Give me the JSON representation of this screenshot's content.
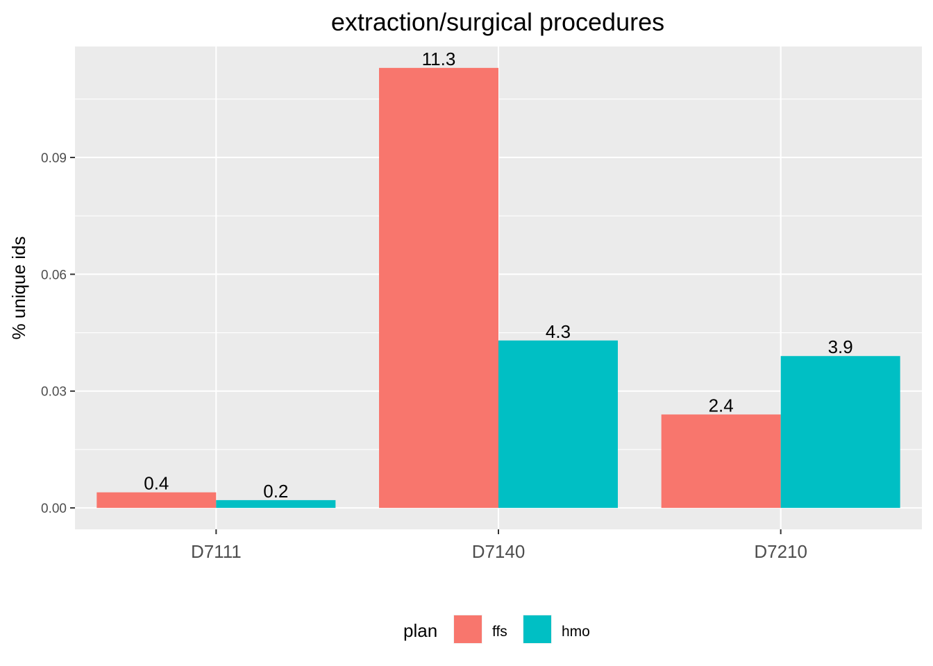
{
  "chart_data": {
    "type": "bar",
    "title": "extraction/surgical procedures",
    "xlabel": "",
    "ylabel": "% unique ids",
    "categories": [
      "D7111",
      "D7140",
      "D7210"
    ],
    "series": [
      {
        "name": "ffs",
        "color": "#F8766D",
        "values": [
          0.004,
          0.113,
          0.024
        ],
        "labels": [
          "0.4",
          "11.3",
          "2.4"
        ]
      },
      {
        "name": "hmo",
        "color": "#00BFC4",
        "values": [
          0.002,
          0.043,
          0.039
        ],
        "labels": [
          "0.2",
          "4.3",
          "3.9"
        ]
      }
    ],
    "yticks": [
      "0.00",
      "0.03",
      "0.06",
      "0.09"
    ],
    "ylim": [
      -0.0055,
      0.1185
    ],
    "grid": true,
    "panel_background": "#EBEBEB",
    "legend": {
      "title": "plan",
      "placement": "bottom",
      "entries": [
        "ffs",
        "hmo"
      ]
    }
  }
}
